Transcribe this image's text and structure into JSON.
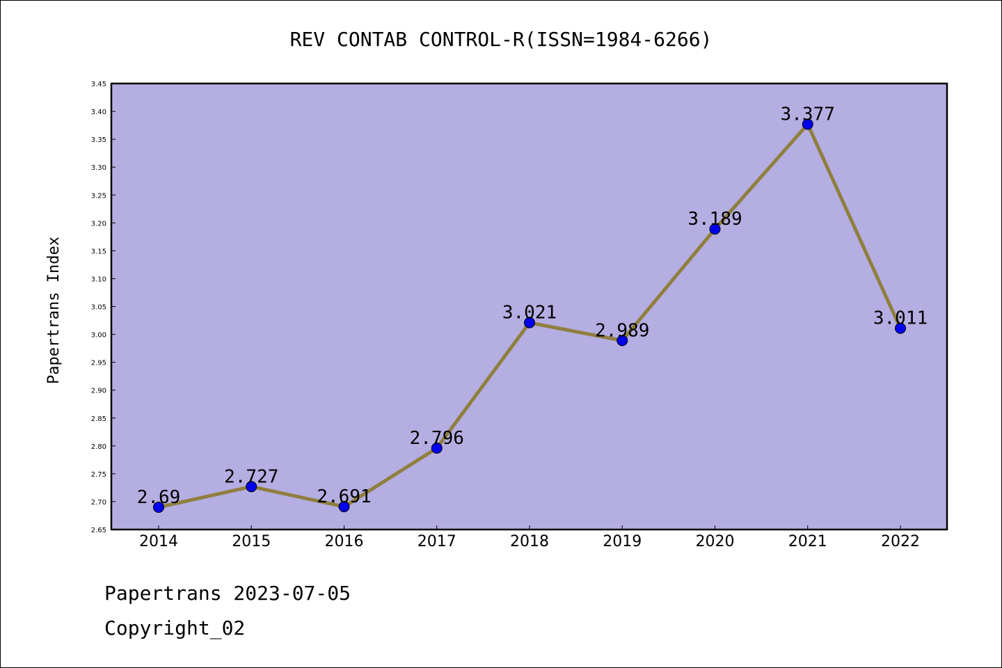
{
  "chart_data": {
    "type": "line",
    "title": "REV CONTAB CONTROL-R(ISSN=1984-6266)",
    "xlabel": "",
    "ylabel": "Papertrans Index",
    "categories": [
      "2014",
      "2015",
      "2016",
      "2017",
      "2018",
      "2019",
      "2020",
      "2021",
      "2022"
    ],
    "values": [
      2.69,
      2.727,
      2.691,
      2.796,
      3.021,
      2.989,
      3.189,
      3.377,
      3.011
    ],
    "data_labels": [
      "2.69",
      "2.727",
      "2.691",
      "2.796",
      "3.021",
      "2.989",
      "3.189",
      "3.377",
      "3.011"
    ],
    "ylim": [
      2.65,
      3.45
    ],
    "yticks": [
      "2.65",
      "2.70",
      "2.75",
      "2.80",
      "2.85",
      "2.90",
      "2.95",
      "3.00",
      "3.05",
      "3.10",
      "3.15",
      "3.20",
      "3.25",
      "3.30",
      "3.35",
      "3.40",
      "3.45"
    ],
    "grid": false,
    "legend": "none",
    "colors": {
      "plot_background": "#b5aee2",
      "line": "#8f7f3f",
      "marker": "#0000ee"
    }
  },
  "footer": {
    "date_line": "Papertrans 2023-07-05",
    "copyright": "Copyright_02"
  }
}
